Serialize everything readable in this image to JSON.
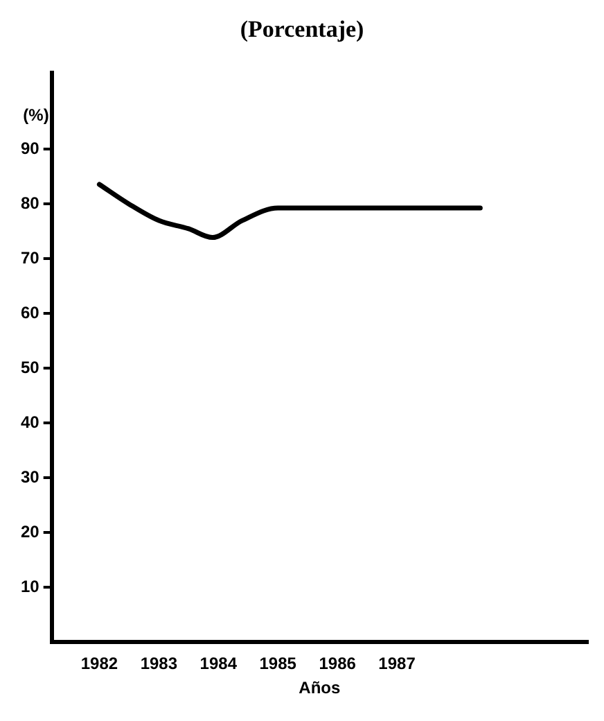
{
  "chart_data": {
    "type": "line",
    "title": "(Porcentaje)",
    "xlabel": "Años",
    "ylabel": "(%)",
    "x": [
      1982,
      1982.5,
      1983,
      1983.5,
      1983.9,
      1984.4,
      1985,
      1988.4
    ],
    "series": [
      {
        "color": "#000000",
        "values": [
          83.6,
          80,
          77,
          75.5,
          73.9,
          77,
          79.3,
          79.3
        ]
      }
    ],
    "xlim": [
      1981.2,
      1990.2
    ],
    "xticks": [
      1982,
      1983,
      1984,
      1985,
      1986,
      1987
    ],
    "ylim": [
      0,
      104
    ],
    "yticks": [
      10,
      20,
      30,
      40,
      50,
      60,
      70,
      80,
      90
    ],
    "grid": false,
    "legend": false,
    "marker": "none",
    "line_style": "solid"
  }
}
